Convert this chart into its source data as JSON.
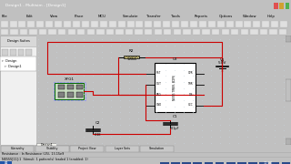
{
  "bg_outer": "#c0c0c0",
  "title_bar_color": "#1f3a6e",
  "title_text": "Design1 - Multisim - [Design1]",
  "title_fg": "#ffffff",
  "menu_bar_bg": "#f0f0f0",
  "toolbar_bg": "#ececec",
  "canvas_bg": "#f5f5f0",
  "canvas_grid": "#c8d4dc",
  "sidebar_bg": "#f0f0f0",
  "sidebar_border": "#aaaaaa",
  "wire_color": "#cc0000",
  "comp_outline": "#000000",
  "xfg_bg": "#c8dcc0",
  "xfg_border": "#006600",
  "ic_bg": "#ffffff",
  "vcc_color": "#000000",
  "res_color": "#c8a020",
  "status_bg": "#f0f0f0",
  "taskbar_bg": "#1a2a5e",
  "taskbar_fg": "#ffffff",
  "bottom_tabs_bg": "#d8d8d8",
  "menus": [
    "File",
    "Edit",
    "View",
    "Place",
    "MCU",
    "Simulate",
    "Transfer",
    "Tools",
    "Reports",
    "Options",
    "Window",
    "Help"
  ],
  "bottom_tabs": [
    "Hierarchy",
    "Visibility",
    "Project View",
    "Layer Sets",
    "Simulation"
  ],
  "r2_label": "R2",
  "r2_value": "150kΩ",
  "c1_label": "C1",
  "c1_value": "0.1µF",
  "c2_label": "C2",
  "c2_value": "0.1E",
  "v1_label": "V1",
  "v1_value": "5.0V",
  "ic_label": "U2",
  "ic_text": "NE555 TIMER, 8DIP8",
  "xfg_label": "XFG1"
}
